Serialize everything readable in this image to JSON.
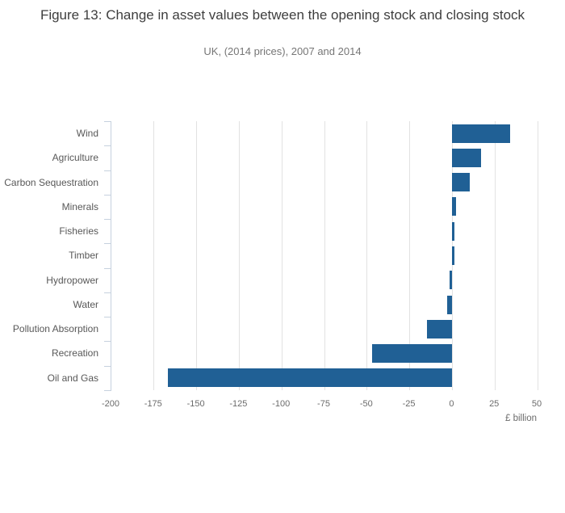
{
  "figure": {
    "title": "Figure 13: Change in asset values between the opening stock and closing stock",
    "subtitle": "UK, (2014 prices), 2007 and 2014"
  },
  "chart_data": {
    "type": "bar",
    "orientation": "horizontal",
    "title": "Figure 13: Change in asset values between the opening stock and closing stock",
    "subtitle": "UK, (2014 prices), 2007 and 2014",
    "categories": [
      "Wind",
      "Agriculture",
      "Carbon Sequestration",
      "Minerals",
      "Fisheries",
      "Timber",
      "Hydropower",
      "Water",
      "Pollution Absorption",
      "Recreation",
      "Oil and Gas"
    ],
    "values": [
      34,
      17,
      10,
      2,
      1,
      1,
      -1.5,
      -3,
      -15,
      -47,
      -167
    ],
    "xlabel": "£ billion",
    "x_ticks": [
      -200,
      -175,
      -150,
      -125,
      -100,
      -75,
      -50,
      -25,
      0,
      25,
      50
    ],
    "x_tick_labels": [
      "-200",
      "-175",
      "-150",
      "-125",
      "-100",
      "-75",
      "-50",
      "-25",
      "0",
      "25",
      "50"
    ],
    "xlim": [
      -200,
      50
    ],
    "grid": true,
    "legend": "none",
    "bar_color": "#206095",
    "gridline_color": "#e2e2e2",
    "axis_line_color": "#c6d1de"
  }
}
